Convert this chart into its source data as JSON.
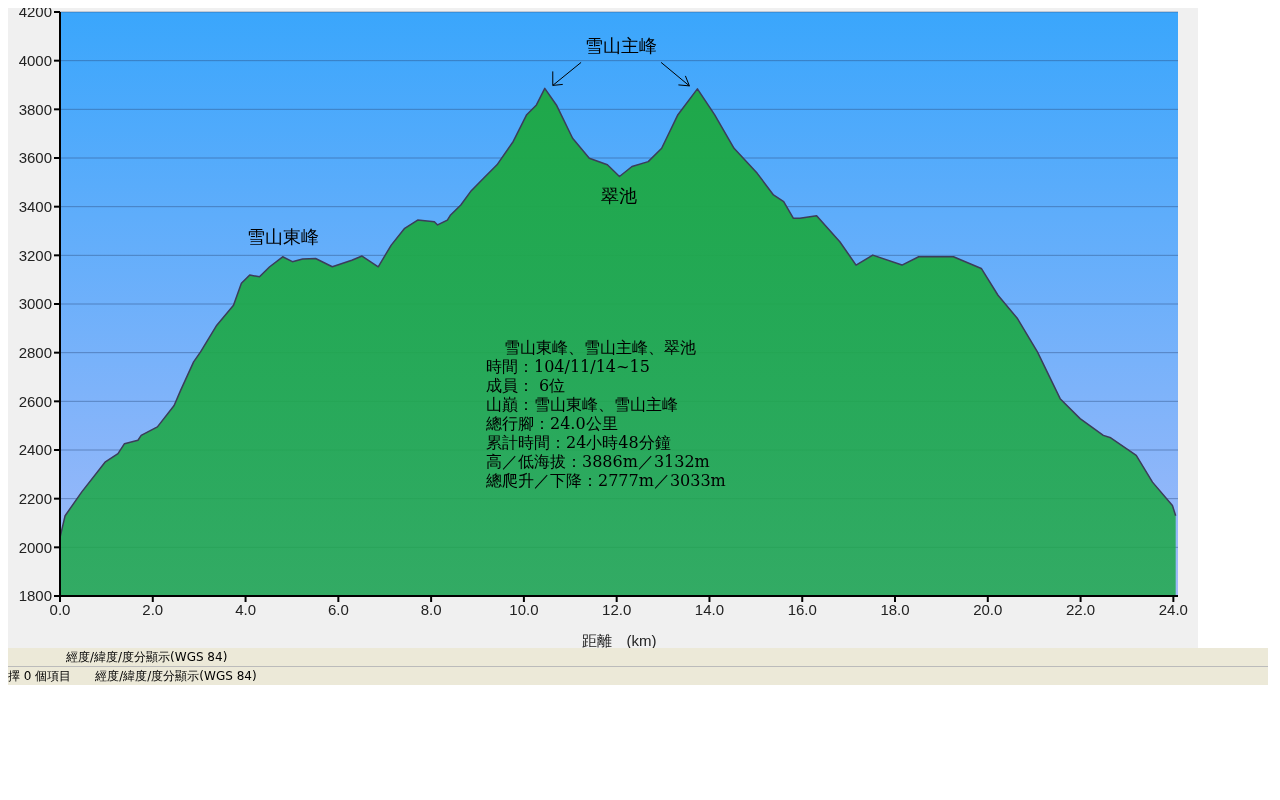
{
  "chart_data": {
    "type": "area",
    "xlabel": "距離　(km)",
    "color": "#1fa84a",
    "x": [
      0,
      0.11,
      0.47,
      0.97,
      1.25,
      1.39,
      1.68,
      1.75,
      2.1,
      2.46,
      2.6,
      2.88,
      3.03,
      3.38,
      3.74,
      3.91,
      4.09,
      4.3,
      4.52,
      4.8,
      5.01,
      5.23,
      5.51,
      5.87,
      6.29,
      6.51,
      6.86,
      7.14,
      7.43,
      7.71,
      8.07,
      8.14,
      8.35,
      8.42,
      8.64,
      8.85,
      9.13,
      9.42,
      9.77,
      10.06,
      10.27,
      10.45,
      10.7,
      11.05,
      11.41,
      11.8,
      12.06,
      12.33,
      12.68,
      12.97,
      13.32,
      13.74,
      14.11,
      14.53,
      15.03,
      15.38,
      15.6,
      15.81,
      15.95,
      16.31,
      16.81,
      17.16,
      17.52,
      18.15,
      18.51,
      19.26,
      19.86,
      20.22,
      20.64,
      21.07,
      21.56,
      21.99,
      22.49,
      22.65,
      23.2,
      23.55,
      23.98,
      24.05
    ],
    "values": [
      2040,
      2130,
      2228,
      2350,
      2385,
      2426,
      2440,
      2460,
      2495,
      2583,
      2645,
      2762,
      2803,
      2913,
      2995,
      3085,
      3119,
      3112,
      3153,
      3194,
      3174,
      3185,
      3187,
      3153,
      3180,
      3197,
      3153,
      3242,
      3311,
      3345,
      3338,
      3325,
      3345,
      3366,
      3407,
      3462,
      3517,
      3572,
      3668,
      3778,
      3818,
      3886,
      3818,
      3681,
      3599,
      3572,
      3524,
      3565,
      3585,
      3640,
      3778,
      3884,
      3778,
      3640,
      3537,
      3448,
      3421,
      3352,
      3352,
      3363,
      3256,
      3160,
      3201,
      3160,
      3194,
      3194,
      3146,
      3036,
      2940,
      2803,
      2611,
      2529,
      2460,
      2450,
      2378,
      2268,
      2172,
      2130
    ],
    "xlim": [
      0,
      24.1
    ],
    "ylim": [
      1800,
      4200
    ],
    "xticks": [
      {
        "value": 0,
        "label": "0.0"
      },
      {
        "value": 2,
        "label": "2.0"
      },
      {
        "value": 4,
        "label": "4.0"
      },
      {
        "value": 6,
        "label": "6.0"
      },
      {
        "value": 8,
        "label": "8.0"
      },
      {
        "value": 10,
        "label": "10.0"
      },
      {
        "value": 12,
        "label": "12.0"
      },
      {
        "value": 14,
        "label": "14.0"
      },
      {
        "value": 16,
        "label": "16.0"
      },
      {
        "value": 18,
        "label": "18.0"
      },
      {
        "value": 20,
        "label": "20.0"
      },
      {
        "value": 22,
        "label": "22.0"
      },
      {
        "value": 24,
        "label": "24.0"
      }
    ],
    "yticks": [
      1800,
      2000,
      2200,
      2400,
      2600,
      2800,
      3000,
      3200,
      3400,
      3600,
      3800,
      4000,
      4200
    ],
    "grid": "y",
    "legend": false,
    "annotations": [
      {
        "text": "雪山東峰",
        "x": 4.8,
        "y": 3194
      },
      "雪山主峰",
      {
        "text": "翠池",
        "x": 12.06,
        "y": 3524
      },
      "雪山東峰、雪山主峰、翠池",
      "時間：104/11/14~15",
      "成員： 6位",
      "山巔：雪山東峰、雪山主峰",
      "總行腳：24.0公里",
      "累計時間：24小時48分鐘",
      "高／低海拔：3886m／3132m",
      "總爬升／下降：2777m／3033m",
      "經度/緯度/度分顯示(WGS 84)",
      "擇 0 個項目",
      "經度/緯度/度分顯示(WGS 84)"
    ]
  }
}
